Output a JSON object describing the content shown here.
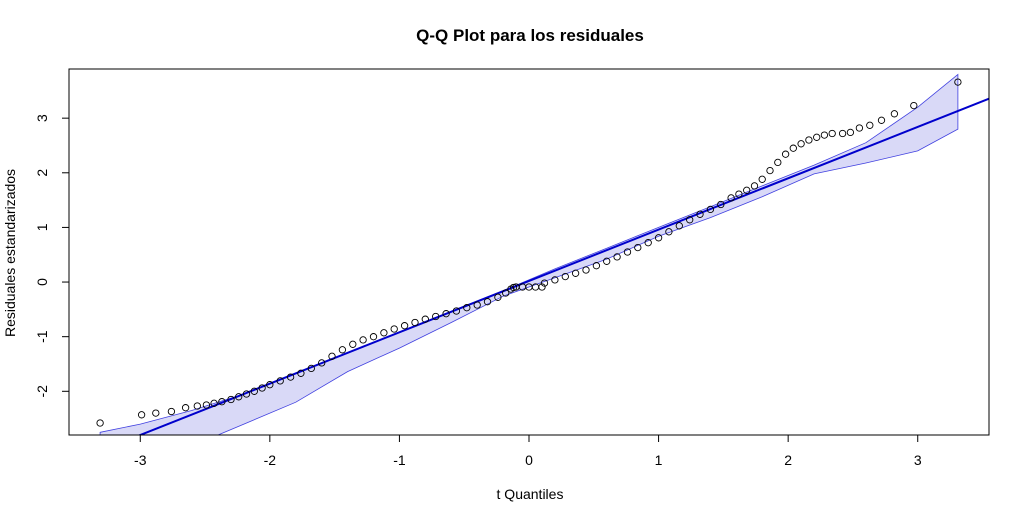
{
  "chart_data": {
    "type": "scatter",
    "title": "Q-Q Plot para los residuales",
    "xlabel": "t Quantiles",
    "ylabel": "Residuales estandarizados",
    "xlim": [
      -3.55,
      3.55
    ],
    "ylim": [
      -2.8,
      3.9
    ],
    "x_ticks": [
      -3,
      -2,
      -1,
      0,
      1,
      2,
      3
    ],
    "y_ticks": [
      -2,
      -1,
      0,
      1,
      2,
      3
    ],
    "grid": false,
    "colors": {
      "points": "#000000",
      "reference_line": "#0000cc",
      "envelope_fill": "#d9d9f7",
      "envelope_stroke": "#4040e0"
    },
    "reference_line": {
      "intercept": 0.02,
      "slope": 0.94
    },
    "envelope": {
      "x": [
        -3.31,
        -3.0,
        -2.6,
        -2.2,
        -1.8,
        -1.4,
        -1.0,
        -0.6,
        -0.2,
        0.2,
        0.6,
        1.0,
        1.4,
        1.8,
        2.2,
        2.6,
        3.0,
        3.31
      ],
      "upper": [
        -2.75,
        -2.6,
        -2.35,
        -2.05,
        -1.68,
        -1.3,
        -0.92,
        -0.54,
        -0.16,
        0.24,
        0.62,
        1.0,
        1.38,
        1.76,
        2.14,
        2.55,
        3.2,
        3.8
      ],
      "lower": [
        -3.0,
        -3.0,
        -3.0,
        -2.6,
        -2.2,
        -1.64,
        -1.21,
        -0.74,
        -0.26,
        0.08,
        0.42,
        0.84,
        1.18,
        1.56,
        1.98,
        2.18,
        2.4,
        2.8
      ]
    },
    "points": {
      "x": [
        -3.31,
        -2.99,
        -2.88,
        -2.76,
        -2.65,
        -2.56,
        -2.49,
        -2.43,
        -2.37,
        -2.3,
        -2.24,
        -2.18,
        -2.12,
        -2.06,
        -2.0,
        -1.92,
        -1.84,
        -1.76,
        -1.68,
        -1.6,
        -1.52,
        -1.44,
        -1.36,
        -1.28,
        -1.2,
        -1.12,
        -1.04,
        -0.96,
        -0.88,
        -0.8,
        -0.72,
        -0.64,
        -0.56,
        -0.48,
        -0.4,
        -0.32,
        -0.24,
        -0.18,
        -0.14,
        -0.12,
        -0.1,
        -0.05,
        0.0,
        0.05,
        0.1,
        0.12,
        0.2,
        0.28,
        0.36,
        0.44,
        0.52,
        0.6,
        0.68,
        0.76,
        0.84,
        0.92,
        1.0,
        1.08,
        1.16,
        1.24,
        1.32,
        1.4,
        1.48,
        1.56,
        1.62,
        1.68,
        1.74,
        1.8,
        1.86,
        1.92,
        1.98,
        2.04,
        2.1,
        2.16,
        2.22,
        2.28,
        2.34,
        2.42,
        2.48,
        2.55,
        2.63,
        2.72,
        2.82,
        2.97,
        3.31
      ],
      "y": [
        -2.58,
        -2.43,
        -2.4,
        -2.37,
        -2.3,
        -2.27,
        -2.25,
        -2.22,
        -2.19,
        -2.15,
        -2.1,
        -2.05,
        -2.0,
        -1.94,
        -1.88,
        -1.81,
        -1.74,
        -1.67,
        -1.58,
        -1.48,
        -1.36,
        -1.24,
        -1.14,
        -1.06,
        -1.0,
        -0.93,
        -0.86,
        -0.8,
        -0.74,
        -0.68,
        -0.63,
        -0.58,
        -0.53,
        -0.47,
        -0.42,
        -0.36,
        -0.28,
        -0.2,
        -0.13,
        -0.1,
        -0.09,
        -0.09,
        -0.09,
        -0.09,
        -0.09,
        -0.02,
        0.04,
        0.1,
        0.16,
        0.22,
        0.3,
        0.38,
        0.46,
        0.55,
        0.63,
        0.72,
        0.81,
        0.92,
        1.03,
        1.14,
        1.24,
        1.33,
        1.42,
        1.54,
        1.61,
        1.68,
        1.76,
        1.88,
        2.04,
        2.19,
        2.34,
        2.45,
        2.53,
        2.6,
        2.65,
        2.69,
        2.72,
        2.72,
        2.74,
        2.82,
        2.87,
        2.96,
        3.08,
        3.23,
        3.66
      ]
    }
  }
}
